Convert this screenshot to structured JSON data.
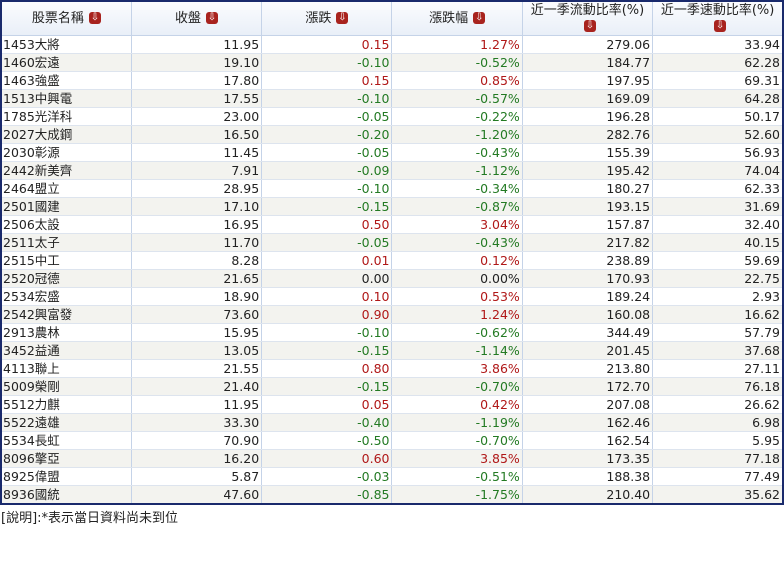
{
  "headers": [
    "股票名稱",
    "收盤",
    "漲跌",
    "漲跌幅",
    "近一季流動比率(%)",
    "近一季速動比率(%)"
  ],
  "sort_icon": "sort-down-icon",
  "colors": {
    "up": "#b01818",
    "down": "#237a23",
    "border": "#1a2a6c"
  },
  "rows": [
    [
      "1453大將",
      "11.95",
      "0.15",
      "1.27%",
      "279.06",
      "33.94"
    ],
    [
      "1460宏遠",
      "19.10",
      "-0.10",
      "-0.52%",
      "184.77",
      "62.28"
    ],
    [
      "1463強盛",
      "17.80",
      "0.15",
      "0.85%",
      "197.95",
      "69.31"
    ],
    [
      "1513中興電",
      "17.55",
      "-0.10",
      "-0.57%",
      "169.09",
      "64.28"
    ],
    [
      "1785光洋科",
      "23.00",
      "-0.05",
      "-0.22%",
      "196.28",
      "50.17"
    ],
    [
      "2027大成鋼",
      "16.50",
      "-0.20",
      "-1.20%",
      "282.76",
      "52.60"
    ],
    [
      "2030彰源",
      "11.45",
      "-0.05",
      "-0.43%",
      "155.39",
      "56.93"
    ],
    [
      "2442新美齊",
      "7.91",
      "-0.09",
      "-1.12%",
      "195.42",
      "74.04"
    ],
    [
      "2464盟立",
      "28.95",
      "-0.10",
      "-0.34%",
      "180.27",
      "62.33"
    ],
    [
      "2501國建",
      "17.10",
      "-0.15",
      "-0.87%",
      "193.15",
      "31.69"
    ],
    [
      "2506太設",
      "16.95",
      "0.50",
      "3.04%",
      "157.87",
      "32.40"
    ],
    [
      "2511太子",
      "11.70",
      "-0.05",
      "-0.43%",
      "217.82",
      "40.15"
    ],
    [
      "2515中工",
      "8.28",
      "0.01",
      "0.12%",
      "238.89",
      "59.69"
    ],
    [
      "2520冠德",
      "21.65",
      "0.00",
      "0.00%",
      "170.93",
      "22.75"
    ],
    [
      "2534宏盛",
      "18.90",
      "0.10",
      "0.53%",
      "189.24",
      "2.93"
    ],
    [
      "2542興富發",
      "73.60",
      "0.90",
      "1.24%",
      "160.08",
      "16.62"
    ],
    [
      "2913農林",
      "15.95",
      "-0.10",
      "-0.62%",
      "344.49",
      "57.79"
    ],
    [
      "3452益通",
      "13.05",
      "-0.15",
      "-1.14%",
      "201.45",
      "37.68"
    ],
    [
      "4113聯上",
      "21.55",
      "0.80",
      "3.86%",
      "213.80",
      "27.11"
    ],
    [
      "5009榮剛",
      "21.40",
      "-0.15",
      "-0.70%",
      "172.70",
      "76.18"
    ],
    [
      "5512力麒",
      "11.95",
      "0.05",
      "0.42%",
      "207.08",
      "26.62"
    ],
    [
      "5522遠雄",
      "33.30",
      "-0.40",
      "-1.19%",
      "162.46",
      "6.98"
    ],
    [
      "5534長虹",
      "70.90",
      "-0.50",
      "-0.70%",
      "162.54",
      "5.95"
    ],
    [
      "8096擎亞",
      "16.20",
      "0.60",
      "3.85%",
      "173.35",
      "77.18"
    ],
    [
      "8925偉盟",
      "5.87",
      "-0.03",
      "-0.51%",
      "188.38",
      "77.49"
    ],
    [
      "8936國統",
      "47.60",
      "-0.85",
      "-1.75%",
      "210.40",
      "35.62"
    ]
  ],
  "note": "[說明]:*表示當日資料尚未到位"
}
